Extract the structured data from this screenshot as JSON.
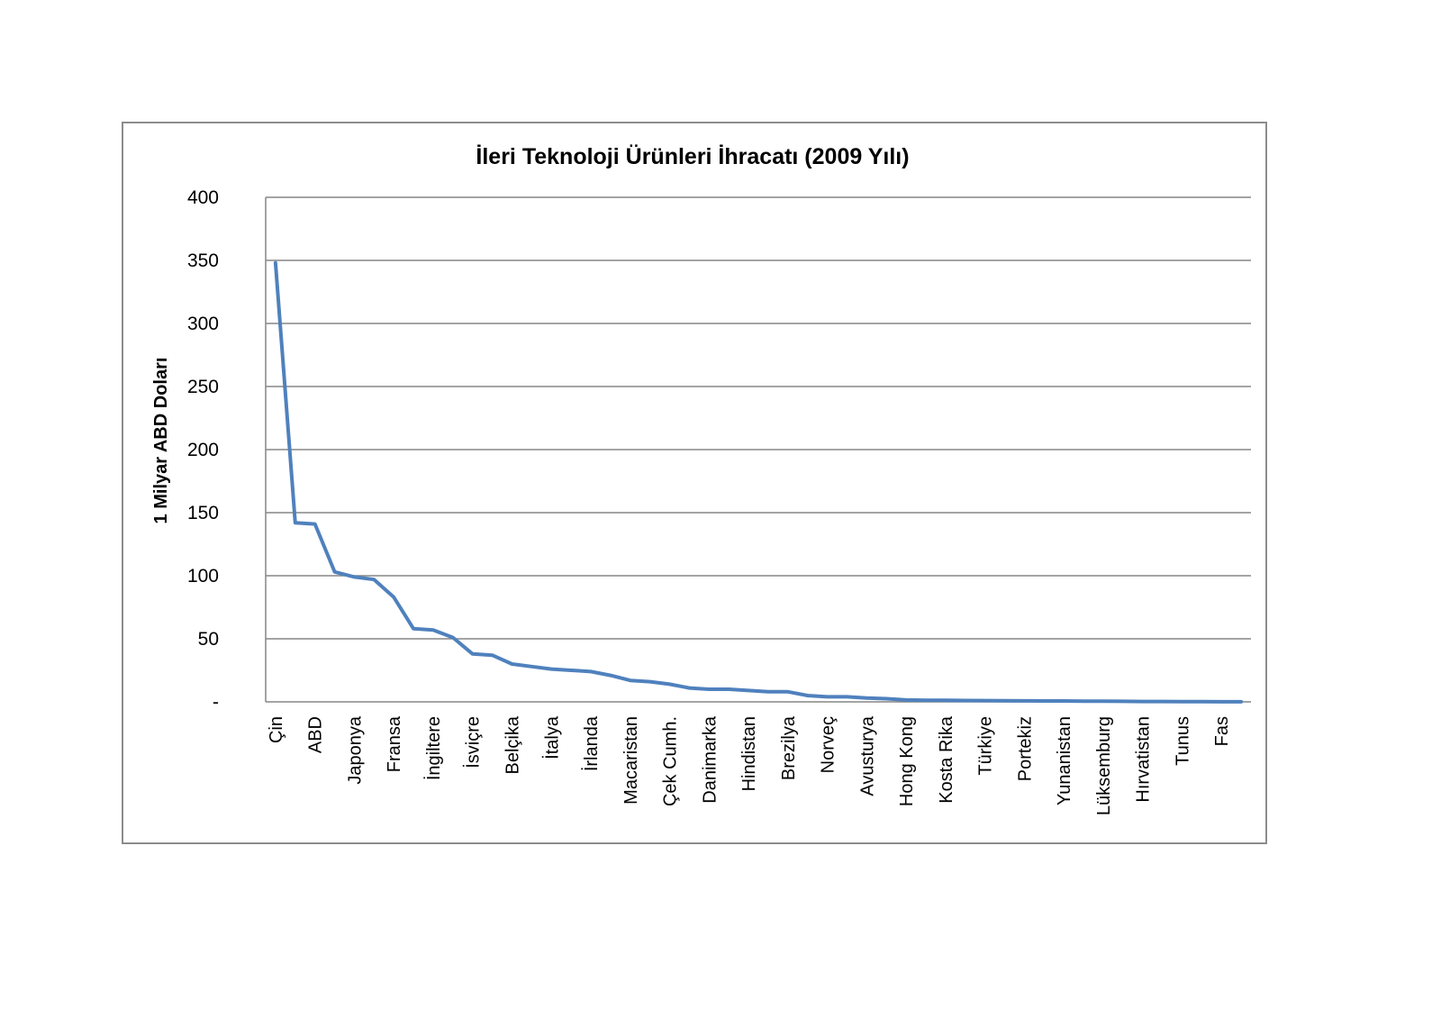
{
  "chart_data": {
    "type": "line",
    "title": "İleri Teknoloji Ürünleri İhracatı (2009 Yılı)",
    "xlabel": "",
    "ylabel": "1 Milyar ABD Doları",
    "ylim": [
      0,
      400
    ],
    "yticks": [
      {
        "value": 0,
        "label": "-"
      },
      {
        "value": 50,
        "label": "50"
      },
      {
        "value": 100,
        "label": "100"
      },
      {
        "value": 150,
        "label": "150"
      },
      {
        "value": 200,
        "label": "200"
      },
      {
        "value": 250,
        "label": "250"
      },
      {
        "value": 300,
        "label": "300"
      },
      {
        "value": 350,
        "label": "350"
      },
      {
        "value": 400,
        "label": "400"
      }
    ],
    "grid": true,
    "legend": "none",
    "categories": [
      "Çin",
      "",
      "ABD",
      "",
      "Japonya",
      "",
      "Fransa",
      "",
      "İngiltere",
      "",
      "İsviçre",
      "",
      "Belçika",
      "",
      "İtalya",
      "",
      "İrlanda",
      "",
      "Macaristan",
      "",
      "Çek Cumh.",
      "",
      "Danimarka",
      "",
      "Hindistan",
      "",
      "Brezilya",
      "",
      "Norveç",
      "",
      "Avusturya",
      "",
      "Hong Kong",
      "",
      "Kosta Rika",
      "",
      "Türkiye",
      "",
      "Portekiz",
      "",
      "Yunanistan",
      "",
      "Lüksemburg",
      "",
      "Hırvatistan",
      "",
      "Tunus",
      "",
      "Fas",
      ""
    ],
    "series": [
      {
        "color": "#4f81bd",
        "values": [
          348,
          142,
          141,
          103,
          99,
          97,
          83,
          58,
          57,
          51,
          38,
          37,
          30,
          28,
          26,
          25,
          24,
          21,
          17,
          16,
          14,
          11,
          10,
          10,
          9,
          8,
          8,
          5,
          4,
          4,
          3,
          2.5,
          1.5,
          1.3,
          1.2,
          1.1,
          1.0,
          0.9,
          0.8,
          0.7,
          0.7,
          0.6,
          0.5,
          0.4,
          0.3,
          0.3,
          0.2,
          0.2,
          0.1,
          0.1
        ]
      }
    ]
  }
}
